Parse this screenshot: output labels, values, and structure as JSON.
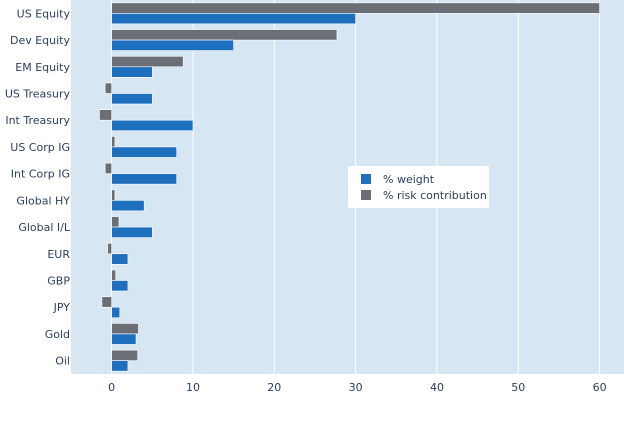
{
  "chart_data": {
    "type": "bar",
    "orientation": "horizontal",
    "title": "",
    "xlabel": "",
    "ylabel": "",
    "categories": [
      "US Equity",
      "Dev Equity",
      "EM Equity",
      "US Treasury",
      "Int Treasury",
      "US Corp IG",
      "Int Corp IG",
      "Global HY",
      "Global I/L",
      "EUR",
      "GBP",
      "JPY",
      "Gold",
      "Oil"
    ],
    "series": [
      {
        "name": "% weight",
        "color": "#1f6fbf",
        "values": [
          30,
          15,
          5,
          5,
          10,
          8,
          8,
          4,
          5,
          2,
          2,
          1,
          3,
          2
        ]
      },
      {
        "name": "% risk contribution",
        "color": "#6b6f75",
        "values": [
          60,
          27.7,
          8.8,
          -0.8,
          -1.5,
          0.4,
          -0.8,
          0.4,
          0.9,
          -0.5,
          0.5,
          -1.2,
          3.3,
          3.2
        ]
      }
    ],
    "xlim": [
      -5,
      63
    ],
    "xticks": [
      0,
      10,
      20,
      30,
      40,
      50,
      60
    ],
    "grid": true,
    "legend_position": "center-right",
    "background_color": "#d6e6f2"
  }
}
